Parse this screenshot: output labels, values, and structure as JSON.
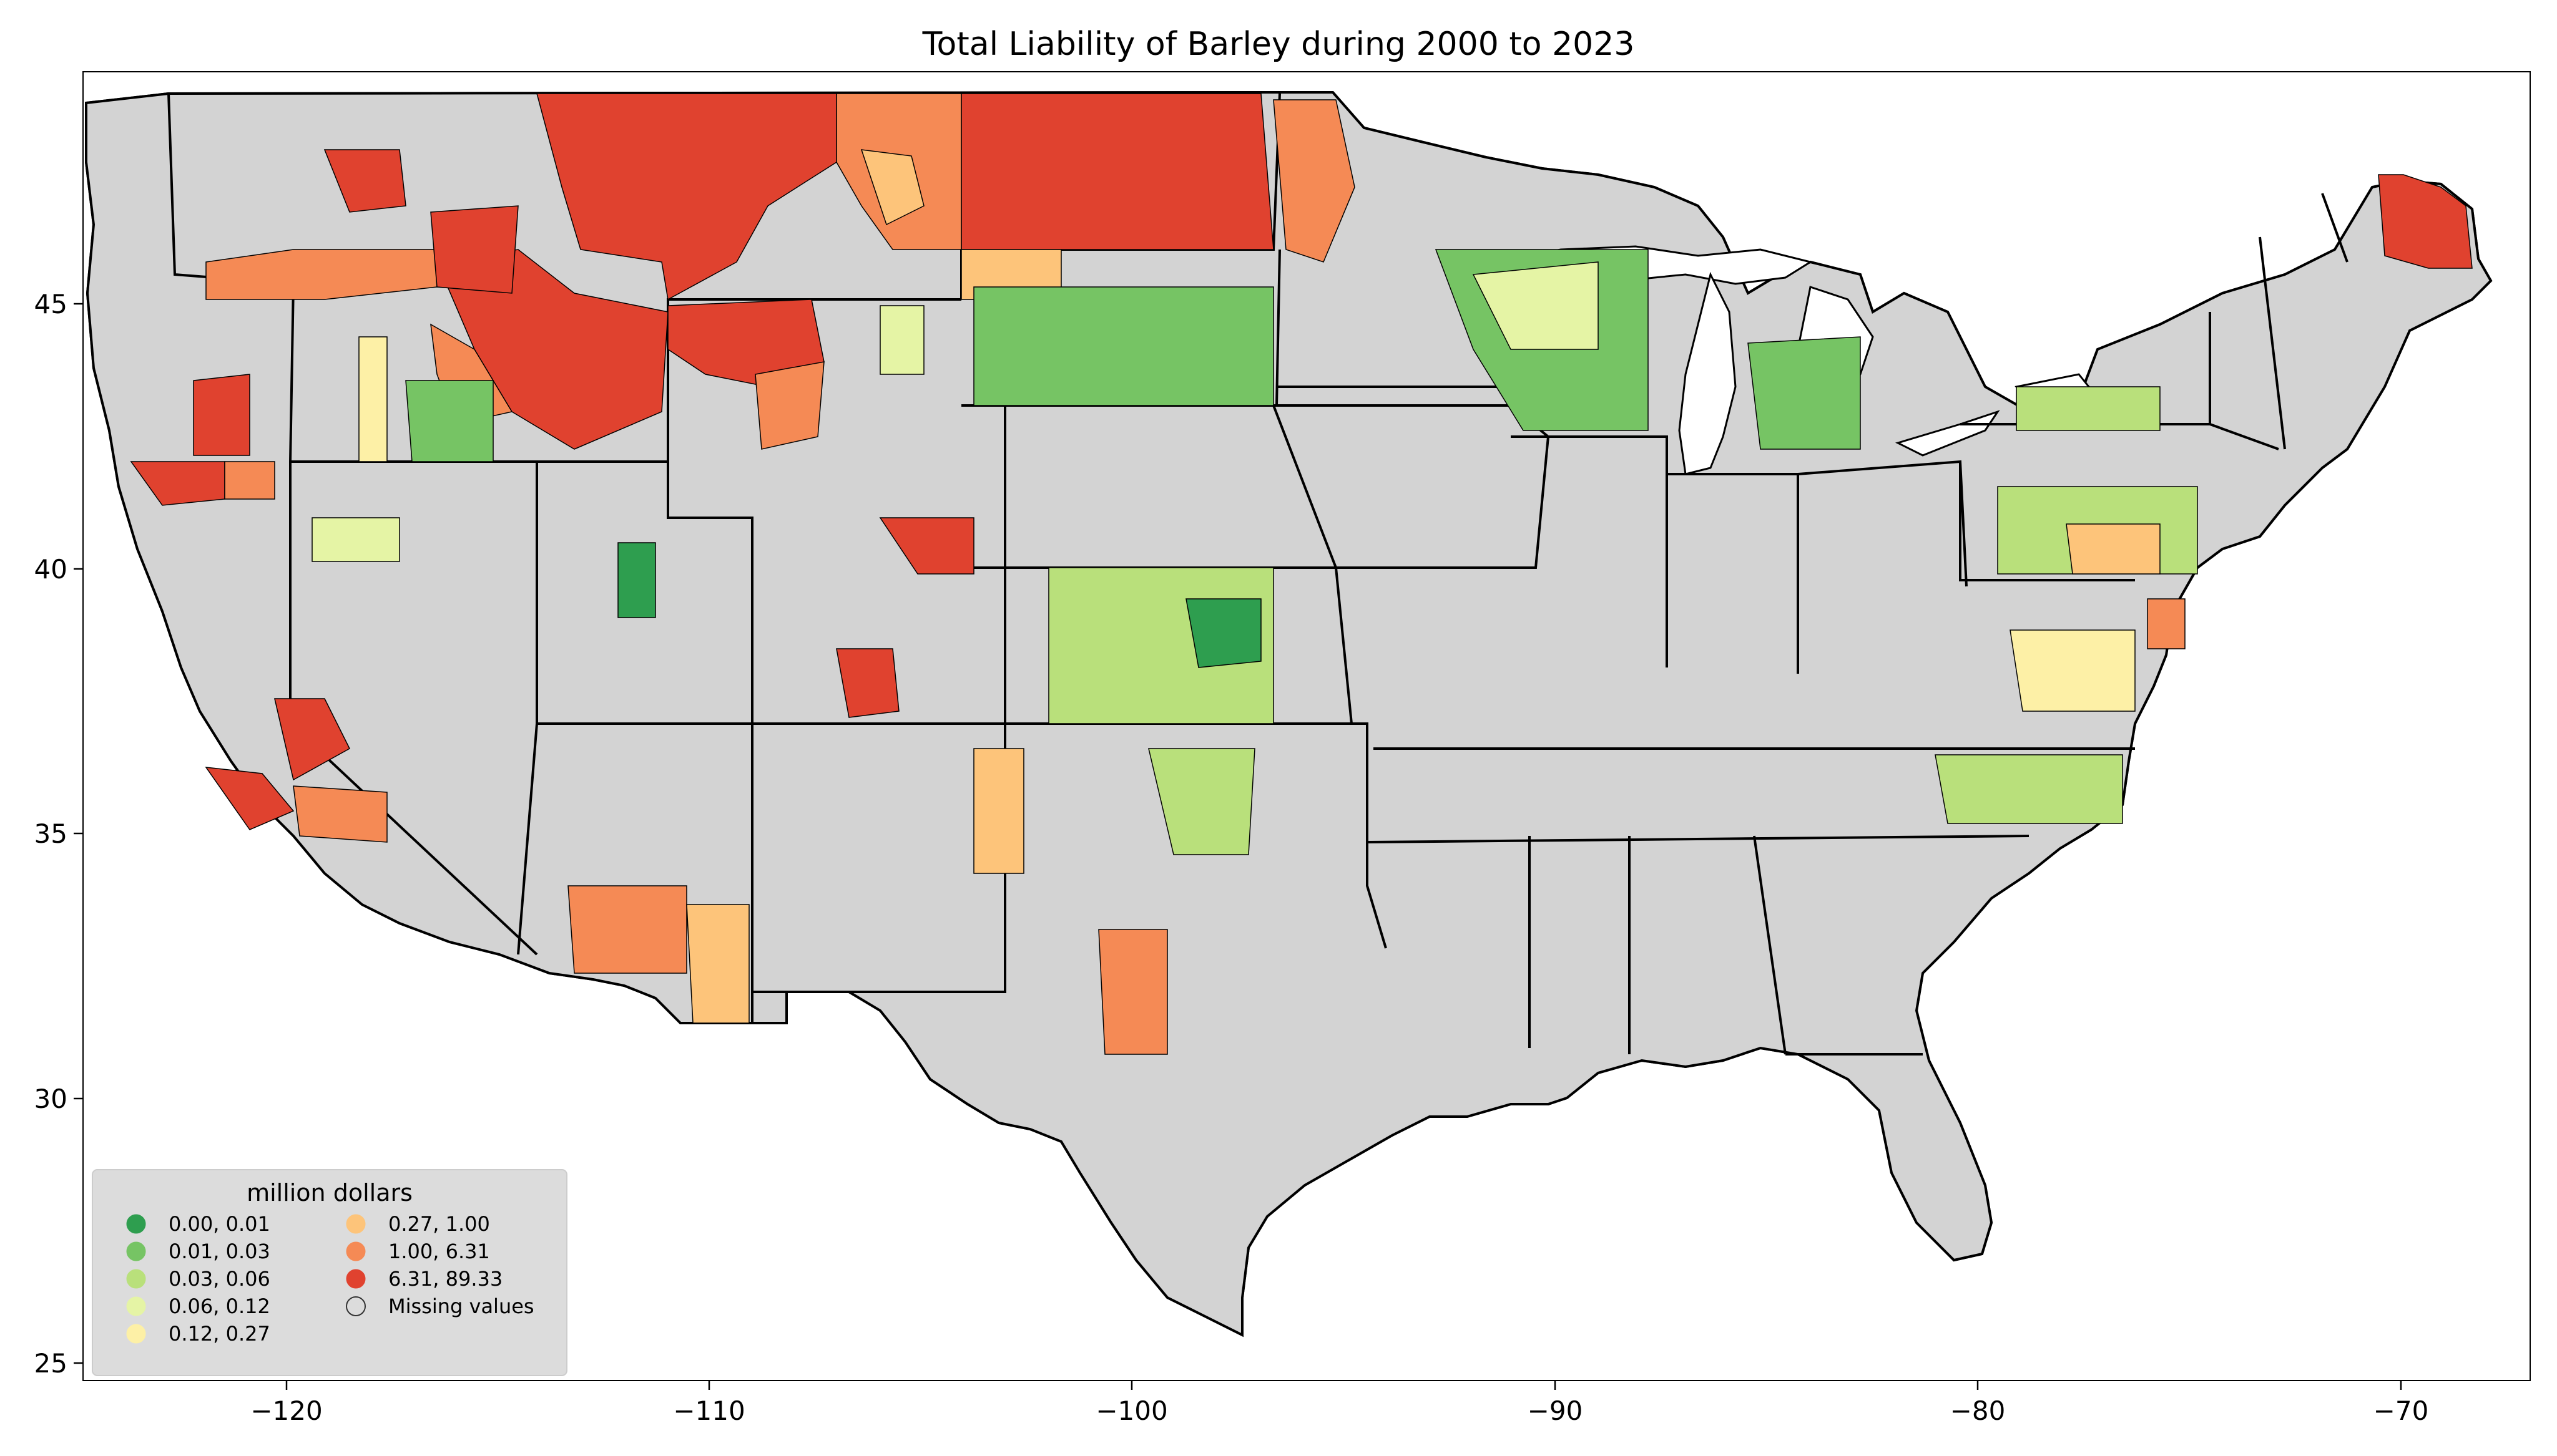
{
  "title": "Total Liability of Barley during 2000 to 2023",
  "x_axis": {
    "ticks": [
      "−120",
      "−110",
      "−100",
      "−90",
      "−80",
      "−70"
    ],
    "values": [
      -120,
      -110,
      -100,
      -90,
      -80,
      -70
    ],
    "range": [
      -125,
      -66.5
    ]
  },
  "y_axis": {
    "ticks": [
      "45",
      "40",
      "35",
      "30",
      "25"
    ],
    "values": [
      45,
      40,
      35,
      30,
      25
    ],
    "range": [
      24.5,
      49.5
    ]
  },
  "legend": {
    "title": "million dollars",
    "placement": "lower-left",
    "items": [
      {
        "label": "0.00,  0.01",
        "color": "#2e9e4f"
      },
      {
        "label": "0.01,  0.03",
        "color": "#76c464"
      },
      {
        "label": "0.03,  0.06",
        "color": "#b9e07b"
      },
      {
        "label": "0.06,  0.12",
        "color": "#e5f4a5"
      },
      {
        "label": "0.12,  0.27",
        "color": "#fdf0a6"
      },
      {
        "label": "0.27,  1.00",
        "color": "#fdc47a"
      },
      {
        "label": "1.00,  6.31",
        "color": "#f58a55"
      },
      {
        "label": "6.31, 89.33",
        "color": "#e0422f"
      },
      {
        "label": "Missing values",
        "color": "#d3d3d3"
      }
    ]
  },
  "colors": {
    "missing": "#d3d3d3",
    "border": "#000000"
  }
}
